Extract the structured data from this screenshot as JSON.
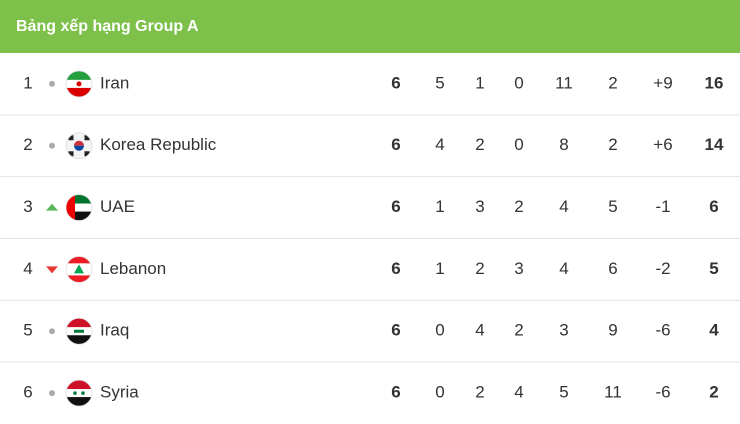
{
  "header": {
    "title": "Bảng xếp hạng Group A"
  },
  "table": {
    "rows": [
      {
        "rank": 1,
        "movement": "same",
        "team": "Iran",
        "stats": [
          6,
          5,
          1,
          0,
          11,
          2,
          "+9",
          16
        ]
      },
      {
        "rank": 2,
        "movement": "same",
        "team": "Korea Republic",
        "stats": [
          6,
          4,
          2,
          0,
          8,
          2,
          "+6",
          14
        ]
      },
      {
        "rank": 3,
        "movement": "up",
        "team": "UAE",
        "stats": [
          6,
          1,
          3,
          2,
          4,
          5,
          "-1",
          6
        ]
      },
      {
        "rank": 4,
        "movement": "down",
        "team": "Lebanon",
        "stats": [
          6,
          1,
          2,
          3,
          4,
          6,
          "-2",
          5
        ]
      },
      {
        "rank": 5,
        "movement": "same",
        "team": "Iraq",
        "stats": [
          6,
          0,
          4,
          2,
          3,
          9,
          "-6",
          4
        ]
      },
      {
        "rank": 6,
        "movement": "same",
        "team": "Syria",
        "stats": [
          6,
          0,
          2,
          4,
          5,
          11,
          "-6",
          2
        ]
      }
    ]
  }
}
